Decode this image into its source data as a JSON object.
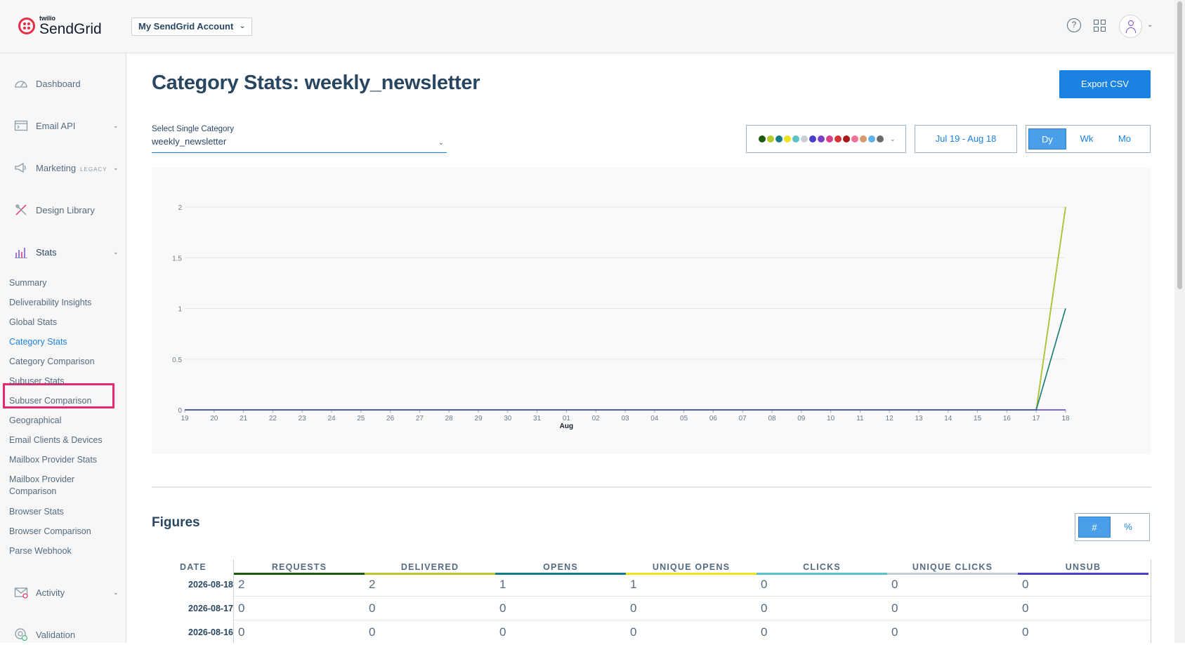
{
  "topbar": {
    "logo_small": "twilio",
    "logo_text": "SendGrid",
    "account_label": "My SendGrid Account",
    "help_icon": "help-circle-icon",
    "apps_icon": "grid-icon",
    "avatar_icon": "user-icon"
  },
  "sidebar": {
    "items": [
      {
        "label": "Dashboard",
        "icon": "dashboard-icon"
      },
      {
        "label": "Email API",
        "icon": "email-api-icon"
      },
      {
        "label": "Marketing",
        "badge": "LEGACY",
        "icon": "megaphone-icon"
      },
      {
        "label": "Design Library",
        "icon": "design-library-icon"
      },
      {
        "label": "Stats",
        "icon": "bar-chart-icon"
      },
      {
        "label": "Activity",
        "icon": "activity-icon"
      },
      {
        "label": "Validation",
        "icon": "validation-icon"
      }
    ],
    "stats_sub": [
      "Summary",
      "Deliverability Insights",
      "Global Stats",
      "Category Stats",
      "Category Comparison",
      "Subuser Stats",
      "Subuser Comparison",
      "Geographical",
      "Email Clients & Devices",
      "Mailbox Provider Stats",
      "Mailbox Provider Comparison",
      "Browser Stats",
      "Browser Comparison",
      "Parse Webhook"
    ],
    "active": "Category Stats"
  },
  "main": {
    "title": "Category Stats: weekly_newsletter",
    "export_label": "Export CSV",
    "select_label": "Select Single Category",
    "select_value": "weekly_newsletter",
    "date_range": "Jul 19 - Aug 18",
    "periods": [
      "Dy",
      "Wk",
      "Mo"
    ],
    "selected_period": "Dy",
    "palette": [
      "#1c5a0f",
      "#b5c92b",
      "#157c87",
      "#f0e21d",
      "#5bc2c9",
      "#c8d0d3",
      "#4b3fc9",
      "#7e3fc6",
      "#d6418b",
      "#d43436",
      "#a61a1a",
      "#f2739a",
      "#d89b6a",
      "#5db2e8",
      "#6b6b6b"
    ]
  },
  "chart_data": {
    "type": "line",
    "x": [
      "19",
      "20",
      "21",
      "22",
      "23",
      "24",
      "25",
      "26",
      "27",
      "28",
      "29",
      "30",
      "31",
      "01",
      "02",
      "03",
      "04",
      "05",
      "06",
      "07",
      "08",
      "09",
      "10",
      "11",
      "12",
      "13",
      "14",
      "15",
      "16",
      "17",
      "18"
    ],
    "x_group_label": "Aug",
    "ylim": [
      0,
      2
    ],
    "yticks": [
      "0",
      "0.5",
      "1",
      "1.5",
      "2"
    ],
    "grid": true,
    "series": [
      {
        "color": "#1c5a0f",
        "values": [
          0,
          0,
          0,
          0,
          0,
          0,
          0,
          0,
          0,
          0,
          0,
          0,
          0,
          0,
          0,
          0,
          0,
          0,
          0,
          0,
          0,
          0,
          0,
          0,
          0,
          0,
          0,
          0,
          0,
          0,
          2
        ]
      },
      {
        "color": "#b5c92b",
        "values": [
          0,
          0,
          0,
          0,
          0,
          0,
          0,
          0,
          0,
          0,
          0,
          0,
          0,
          0,
          0,
          0,
          0,
          0,
          0,
          0,
          0,
          0,
          0,
          0,
          0,
          0,
          0,
          0,
          0,
          0,
          2
        ]
      },
      {
        "color": "#f0e21d",
        "values": [
          0,
          0,
          0,
          0,
          0,
          0,
          0,
          0,
          0,
          0,
          0,
          0,
          0,
          0,
          0,
          0,
          0,
          0,
          0,
          0,
          0,
          0,
          0,
          0,
          0,
          0,
          0,
          0,
          0,
          0,
          1
        ]
      },
      {
        "color": "#157c87",
        "values": [
          0,
          0,
          0,
          0,
          0,
          0,
          0,
          0,
          0,
          0,
          0,
          0,
          0,
          0,
          0,
          0,
          0,
          0,
          0,
          0,
          0,
          0,
          0,
          0,
          0,
          0,
          0,
          0,
          0,
          0,
          1
        ]
      },
      {
        "color": "#4b3fc9",
        "values": [
          0,
          0,
          0,
          0,
          0,
          0,
          0,
          0,
          0,
          0,
          0,
          0,
          0,
          0,
          0,
          0,
          0,
          0,
          0,
          0,
          0,
          0,
          0,
          0,
          0,
          0,
          0,
          0,
          0,
          0,
          0
        ]
      }
    ]
  },
  "figures": {
    "title": "Figures",
    "units": [
      "#",
      "%"
    ],
    "selected_unit": "#",
    "date_header": "DATE",
    "columns": [
      {
        "label": "REQUESTS",
        "color": "#1c5a0f"
      },
      {
        "label": "DELIVERED",
        "color": "#b5c92b"
      },
      {
        "label": "OPENS",
        "color": "#157c87"
      },
      {
        "label": "UNIQUE OPENS",
        "color": "#f0e21d"
      },
      {
        "label": "CLICKS",
        "color": "#5bc2c9"
      },
      {
        "label": "UNIQUE CLICKS",
        "color": "#c8d0d3"
      },
      {
        "label": "UNSUB",
        "color": "#4b3fc9"
      }
    ],
    "rows": [
      {
        "date": "2026-08-18",
        "values": [
          "2",
          "2",
          "1",
          "1",
          "0",
          "0",
          "0"
        ]
      },
      {
        "date": "2026-08-17",
        "values": [
          "0",
          "0",
          "0",
          "0",
          "0",
          "0",
          "0"
        ]
      },
      {
        "date": "2026-08-16",
        "values": [
          "0",
          "0",
          "0",
          "0",
          "0",
          "0",
          "0"
        ]
      }
    ]
  }
}
